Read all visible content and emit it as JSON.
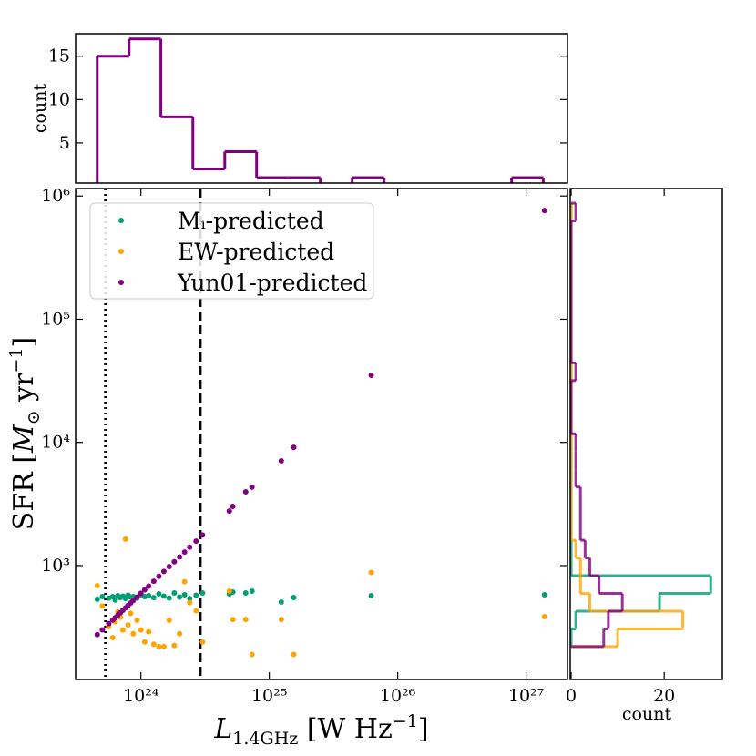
{
  "chart_data": [
    {
      "type": "scatter",
      "x": [
        4.57e+23,
        5.01e+23,
        5.62e+23,
        6.03e+23,
        6.31e+23,
        6.61e+23,
        6.92e+23,
        7.24e+23,
        7.59e+23,
        7.94e+23,
        8.32e+23,
        8.71e+23,
        9.33e+23,
        1e+24,
        1.07e+24,
        1.15e+24,
        1.26e+24,
        1.38e+24,
        1.51e+24,
        1.66e+24,
        1.82e+24,
        2e+24,
        2.19e+24,
        2.4e+24,
        2.69e+24,
        3.02e+24,
        4.88e+24,
        5.2e+24,
        6.55e+24,
        7.33e+24,
        1.24e+25,
        1.55e+25,
        6.22e+25,
        1.39e+27
      ],
      "series": [
        {
          "name": "Mᵢ-predicted",
          "color": "#009e73",
          "values": [
            533,
            560,
            545,
            560,
            525,
            570,
            550,
            565,
            540,
            575,
            555,
            560,
            545,
            580,
            560,
            570,
            550,
            590,
            565,
            545,
            600,
            555,
            580,
            540,
            575,
            600,
            590,
            610,
            600,
            620,
            506,
            551,
            570,
            580
          ]
        },
        {
          "name": "EW-predicted",
          "color": "#ffa500",
          "values": [
            687,
            470,
            320,
            260,
            350,
            420,
            380,
            300,
            1640,
            330,
            410,
            280,
            360,
            300,
            240,
            290,
            230,
            220,
            220,
            360,
            225,
            280,
            740,
            500,
            430,
            240,
            620,
            365,
            365,
            190,
            365,
            190,
            880,
            385
          ]
        },
        {
          "name": "Yun01-predicted",
          "color": "#800080",
          "values": [
            275,
            301,
            338,
            361,
            378,
            396,
            414,
            434,
            454,
            475,
            497,
            520,
            556,
            596,
            637,
            682,
            747,
            818,
            896,
            981,
            1074,
            1176,
            1288,
            1410,
            1578,
            1770,
            2770,
            3020,
            3970,
            4330,
            7080,
            9120,
            35100,
            762000
          ]
        }
      ],
      "xscale": "log",
      "yscale": "log",
      "xlim": [
        3.1e+23,
        2.1e+27
      ],
      "ylim": [
        119,
        1150000
      ],
      "xticks": [
        {
          "value": 1e+24,
          "label": "10²⁴"
        },
        {
          "value": 1e+25,
          "label": "10²⁵"
        },
        {
          "value": 1e+26,
          "label": "10²⁶"
        },
        {
          "value": 1e+27,
          "label": "10²⁷"
        }
      ],
      "yticks": [
        {
          "value": 1000,
          "label": "10³"
        },
        {
          "value": 10000,
          "label": "10⁴"
        },
        {
          "value": 100000,
          "label": "10⁵"
        },
        {
          "value": 1000000,
          "label": "10⁶"
        }
      ],
      "xlabel": {
        "symbol": "L",
        "sub": "1.4GHz",
        "unit": " [W Hz",
        "sup": "−1",
        "close": "]"
      },
      "ylabel": {
        "open": "SFR [",
        "symbol": "M",
        "sub": "⊙",
        "unit": " yr",
        "sup": "−1",
        "close": "]"
      },
      "legend": "upper left",
      "vlines": [
        {
          "x": 5.3e+23,
          "style": "dotted"
        },
        {
          "x": 2.9e+24,
          "style": "dashed"
        }
      ]
    },
    {
      "type": "histogram",
      "orientation": "vertical",
      "bins": [
        4.57e+23,
        8.09e+23,
        1.43e+24,
        2.54e+24,
        4.5e+24,
        7.96e+24,
        1.41e+25,
        2.5e+25,
        4.42e+25,
        7.83e+25,
        1.39e+26,
        2.45e+26,
        4.35e+26,
        7.71e+26,
        1.36e+27
      ],
      "values": [
        15,
        17,
        8,
        2,
        4,
        1,
        1,
        0,
        1,
        0,
        0,
        0,
        0,
        1
      ],
      "color": "#800080",
      "xscale": "log",
      "xlim": [
        3.1e+23,
        2.1e+27
      ],
      "ylim": [
        0.37,
        17.6
      ],
      "yticks": [
        5,
        10,
        15
      ],
      "ylabel": "count"
    },
    {
      "type": "histogram",
      "orientation": "horizontal",
      "bins": [
        220,
        306,
        427,
        594,
        828,
        1153,
        1607,
        2239,
        3119,
        4345,
        6053,
        8433,
        11750,
        16370,
        22800,
        31770,
        44260,
        61660,
        85900,
        119700,
        166700,
        232300,
        323600,
        450800,
        628100,
        875000
      ],
      "series": [
        {
          "color": "#009e73",
          "values": [
            0,
            1,
            19,
            30,
            0,
            0,
            0,
            0,
            0,
            0,
            0,
            0,
            0,
            0,
            0,
            0,
            0,
            0,
            0,
            0,
            0,
            0,
            0,
            0,
            0
          ]
        },
        {
          "color": "#ffa500",
          "values": [
            10,
            24,
            4,
            2,
            2,
            1,
            0,
            0,
            0,
            0,
            0,
            0,
            0,
            0,
            0,
            0,
            0,
            0,
            0,
            0,
            0,
            0,
            0,
            0,
            0
          ]
        },
        {
          "color": "#800080",
          "values": [
            7,
            8,
            11,
            6,
            4,
            3,
            2,
            2,
            2,
            1,
            1,
            1,
            0,
            0,
            0,
            1,
            0,
            0,
            0,
            0,
            0,
            0,
            0,
            0,
            1
          ]
        }
      ],
      "yscale": "log",
      "ylim": [
        119,
        1150000
      ],
      "xlim": [
        -0.2,
        32.5
      ],
      "xticks": [
        0,
        20
      ],
      "xlabel": "count"
    }
  ]
}
